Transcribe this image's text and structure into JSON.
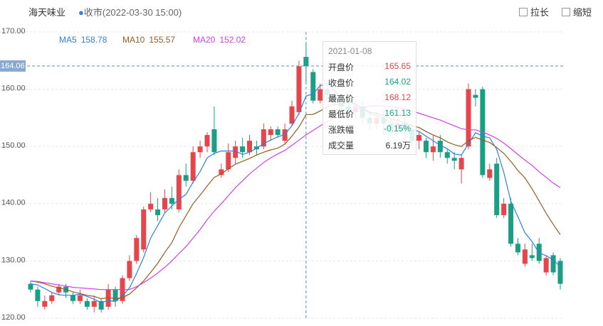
{
  "chart_data": {
    "type": "candlestick",
    "title": "海天味业",
    "subtitle": "收市(2022-03-30 15:00)",
    "buttons": [
      "拉长",
      "缩短"
    ],
    "up_color": "#e5464b",
    "down_color": "#1a9f85",
    "open": [
      126,
      125,
      122,
      123,
      124.5,
      125.5,
      124,
      123,
      123,
      122,
      123,
      122,
      125,
      123,
      127,
      130,
      132,
      139,
      139,
      139,
      141,
      139,
      145,
      144,
      149,
      150,
      153,
      145,
      146,
      148,
      150,
      149,
      150,
      150,
      152,
      153,
      151,
      154,
      156,
      165.65,
      163,
      158,
      160,
      159,
      158,
      157,
      156,
      157,
      155,
      154,
      155,
      154,
      153,
      154,
      153,
      151,
      151,
      149,
      151,
      149,
      148,
      146,
      150,
      159,
      160,
      144.5,
      147,
      138,
      140,
      133,
      129.5,
      131,
      133,
      128,
      131,
      130
    ],
    "close": [
      125,
      123,
      123,
      124,
      125.5,
      124.5,
      123,
      124,
      122,
      123,
      121.5,
      125,
      123,
      127,
      130,
      134,
      139,
      140,
      138,
      141,
      140,
      145,
      144,
      149,
      150,
      152,
      149,
      146,
      149,
      150,
      149,
      151,
      149.5,
      153,
      153,
      152,
      153,
      157,
      164,
      164.02,
      158,
      160,
      159,
      158,
      157,
      156,
      157,
      155,
      154,
      155,
      154,
      153,
      154,
      153,
      151,
      152,
      149,
      150,
      149,
      148,
      147.5,
      148,
      160,
      158.5,
      145,
      146,
      138,
      140,
      133,
      131.5,
      132,
      130.5,
      130,
      130.5,
      128,
      126
    ],
    "high": [
      126.5,
      125.5,
      124,
      124.5,
      126,
      126,
      124.5,
      125,
      123.5,
      124,
      123.5,
      126,
      125.5,
      127.5,
      131,
      134.5,
      139.5,
      142,
      141,
      142.5,
      143,
      146,
      147,
      150,
      151,
      152.5,
      157,
      147,
      150.5,
      151,
      151.5,
      152,
      151,
      154,
      153.5,
      153.5,
      154,
      158,
      165,
      168.12,
      163.5,
      161,
      161,
      160,
      159,
      158,
      158,
      158,
      156,
      156,
      156,
      155,
      155,
      155,
      154,
      152.5,
      151.5,
      152,
      152,
      149.5,
      149,
      148.5,
      161,
      160,
      160.5,
      147,
      148,
      141,
      141,
      134,
      133,
      133,
      134,
      131,
      131.5,
      130.5
    ],
    "low": [
      124.5,
      122,
      121.5,
      122.5,
      124,
      123.5,
      122.5,
      122.5,
      121.5,
      121,
      121,
      121.5,
      122,
      122.5,
      126.5,
      129.5,
      131.5,
      138.5,
      137,
      138.5,
      139,
      138.5,
      143,
      143.5,
      148,
      149,
      148.5,
      144.5,
      145.5,
      147,
      148,
      148.5,
      148.5,
      149.5,
      151,
      151.5,
      150.5,
      153.5,
      155.5,
      161.13,
      157.5,
      157.5,
      158,
      157,
      156,
      155,
      155,
      154,
      153,
      153,
      152,
      152,
      152,
      152,
      150,
      149.5,
      148,
      147.5,
      148,
      147,
      146,
      143.5,
      149.5,
      157,
      144.5,
      144,
      137.5,
      137.5,
      132.5,
      131,
      129,
      130,
      129.5,
      127.5,
      127.5,
      125
    ],
    "series": [
      {
        "name": "MA5",
        "color": "#2f7fe0",
        "values": [
          126,
          125.8,
          125.2,
          124.5,
          124.1,
          124,
          124,
          124.2,
          123.8,
          123.3,
          122.7,
          123.1,
          122.9,
          123.9,
          125.3,
          127.8,
          130.6,
          134,
          136.2,
          138.4,
          139.6,
          140.8,
          141.6,
          143.8,
          145.6,
          148,
          148.8,
          149.2,
          149.2,
          149.2,
          148.6,
          149,
          149.7,
          150.5,
          151.1,
          151.7,
          152.1,
          153.6,
          155.8,
          158.78,
          159.2,
          160.6,
          161,
          159.8,
          158.4,
          158,
          157.4,
          156.6,
          155.8,
          155.4,
          155,
          154.2,
          154,
          153.8,
          153,
          152.6,
          151.8,
          151,
          150.2,
          149.6,
          148.7,
          148.5,
          150.5,
          152.4,
          151.8,
          151.5,
          149.5,
          145.5,
          140.4,
          137.7,
          134.9,
          133.4,
          131.4,
          130.9,
          130.2,
          129
        ]
      },
      {
        "name": "MA10",
        "color": "#9a5a22",
        "values": [
          126.5,
          126.3,
          126,
          125.6,
          125.3,
          125,
          124.6,
          124.3,
          124,
          123.8,
          123.4,
          123.6,
          123.4,
          123.6,
          124.2,
          125.3,
          126.5,
          128,
          129.6,
          131.5,
          133.2,
          135.8,
          137.9,
          140,
          141.5,
          143.1,
          144.6,
          145.2,
          146.1,
          146.9,
          147.4,
          147.9,
          148.5,
          149,
          149.4,
          149.7,
          150.4,
          151.8,
          153.4,
          155.57,
          155.6,
          156.2,
          156.9,
          157.4,
          157.3,
          157.8,
          157.3,
          156.7,
          156,
          155.8,
          155.4,
          154.8,
          154.5,
          154.2,
          153.6,
          153.3,
          152.6,
          152,
          151.5,
          150.8,
          150.3,
          150,
          151,
          151.6,
          151.1,
          150.7,
          149.8,
          148.8,
          147.4,
          145.8,
          144.5,
          142.6,
          140.5,
          138.3,
          136.4,
          134.6
        ]
      },
      {
        "name": "MA20",
        "color": "#d63ee6",
        "values": [
          126.5,
          126.4,
          126.2,
          126,
          125.8,
          125.6,
          125.4,
          125.3,
          125.2,
          125.1,
          125,
          125,
          125,
          125,
          125,
          125.5,
          126.2,
          127,
          127.9,
          128.9,
          130,
          131.3,
          132.5,
          134,
          135.5,
          137.2,
          138.7,
          140,
          141.4,
          142.8,
          144,
          145.2,
          146.2,
          147.2,
          148,
          148.7,
          149.3,
          150.2,
          151.1,
          152.02,
          152.8,
          153.6,
          154.3,
          155,
          155.6,
          156.1,
          156.5,
          156.8,
          157,
          157.1,
          157.1,
          157,
          156.8,
          156.5,
          156.2,
          155.8,
          155.4,
          155,
          154.6,
          154.1,
          153.6,
          153.1,
          152.9,
          152.9,
          152.5,
          152,
          151.4,
          150.6,
          149.6,
          148.6,
          147.6,
          146.7,
          145.6,
          144.6,
          143.6,
          142.8
        ]
      }
    ],
    "ylim": [
      120,
      170
    ],
    "yticks": [
      {
        "value": 120,
        "label": "120.00"
      },
      {
        "value": 130,
        "label": "130.00"
      },
      {
        "value": 140,
        "label": "140.00"
      },
      {
        "value": 150,
        "label": "150.00"
      },
      {
        "value": 160,
        "label": "160.00"
      },
      {
        "value": 170,
        "label": "170.00"
      }
    ],
    "grid": true,
    "crosshair_y": 164.06,
    "tooltip": {
      "date": "2021-01-08",
      "labels": [
        "开盘价",
        "收盘价",
        "最高价",
        "最低价",
        "涨跌幅",
        "成交量"
      ],
      "change_pct": -0.15,
      "change_pct_label": "-0.15%",
      "volume": 6.19,
      "volume_label": "6.19万"
    }
  }
}
